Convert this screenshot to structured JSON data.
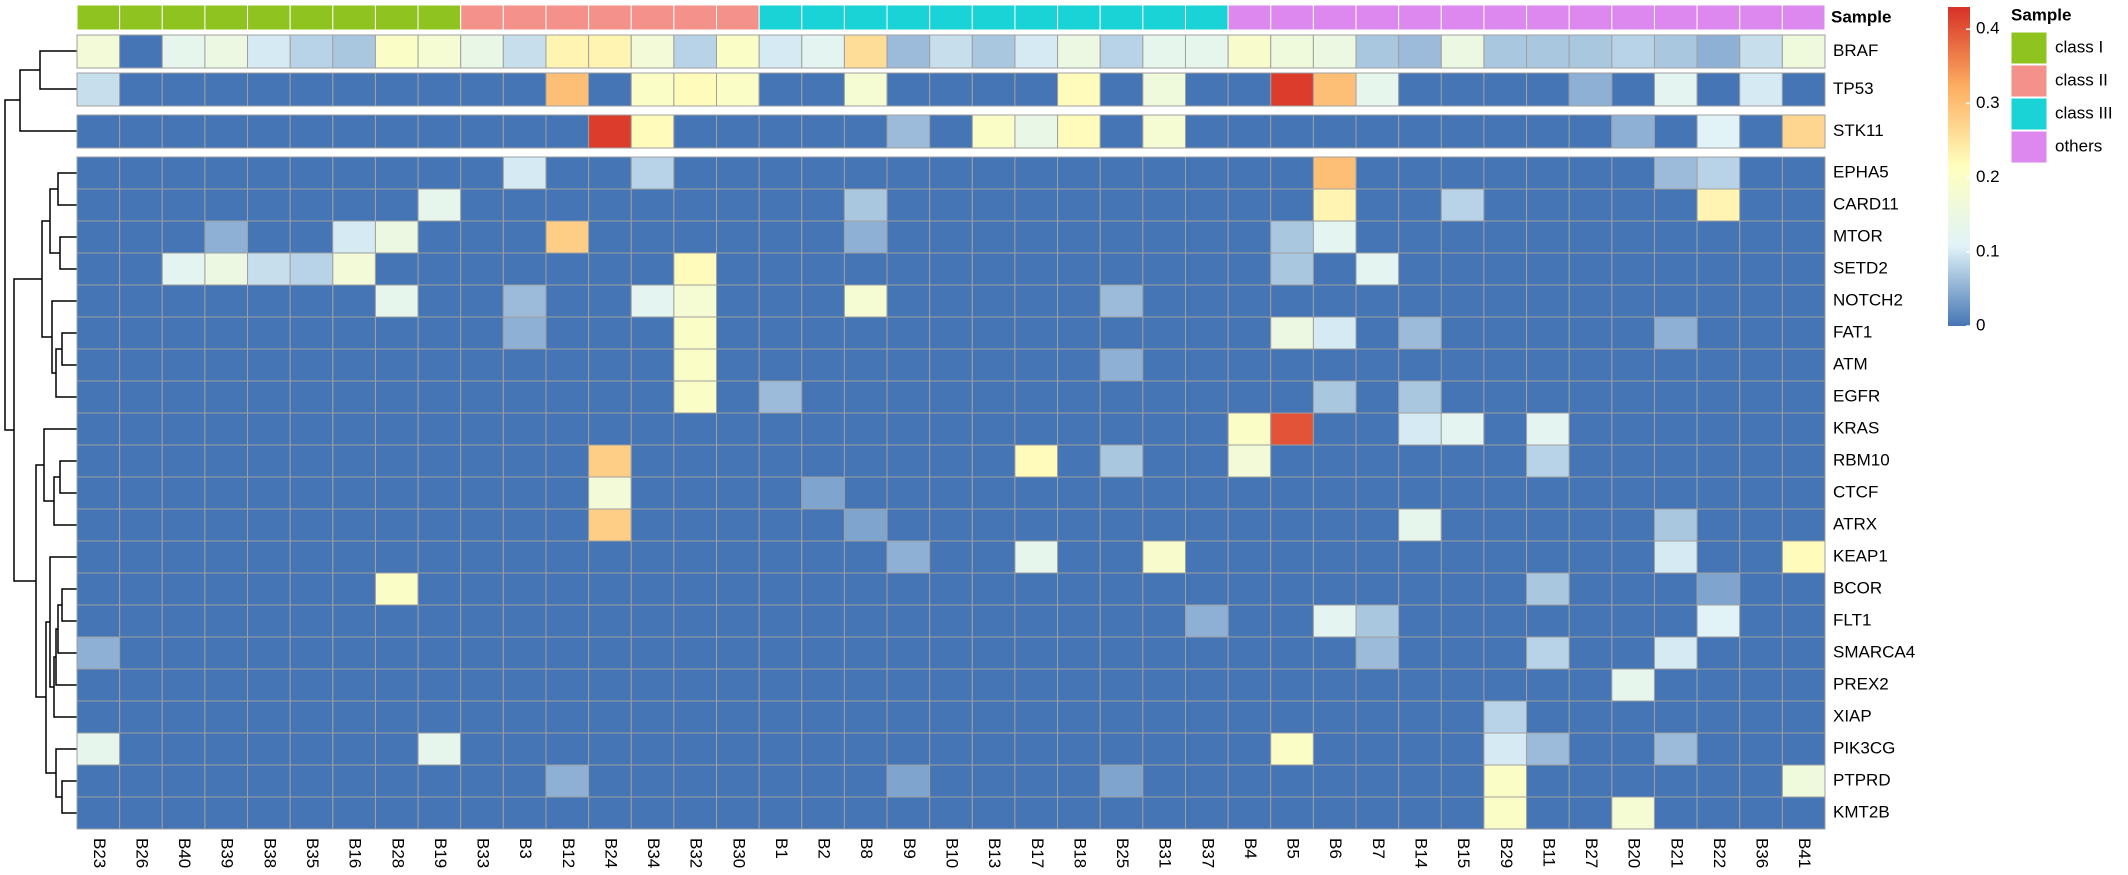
{
  "chart_data": {
    "type": "heatmap",
    "columns": [
      "B23",
      "B26",
      "B40",
      "B39",
      "B38",
      "B35",
      "B16",
      "B28",
      "B19",
      "B33",
      "B3",
      "B12",
      "B24",
      "B34",
      "B32",
      "B30",
      "B1",
      "B2",
      "B8",
      "B9",
      "B10",
      "B13",
      "B17",
      "B18",
      "B25",
      "B31",
      "B37",
      "B4",
      "B5",
      "B6",
      "B7",
      "B14",
      "B15",
      "B29",
      "B11",
      "B27",
      "B20",
      "B21",
      "B22",
      "B36",
      "B41"
    ],
    "rows": [
      "BRAF",
      "TP53",
      "STK11",
      "EPHA5",
      "CARD11",
      "MTOR",
      "SETD2",
      "NOTCH2",
      "FAT1",
      "ATM",
      "EGFR",
      "KRAS",
      "RBM10",
      "CTCF",
      "ATRX",
      "KEAP1",
      "BCOR",
      "FLT1",
      "SMARCA4",
      "PREX2",
      "XIAP",
      "PIK3CG",
      "PTPRD",
      "KMT2B"
    ],
    "values": [
      [
        0.17,
        0,
        0.13,
        0.15,
        0.1,
        0.08,
        0.07,
        0.2,
        0.18,
        0.14,
        0.09,
        0.23,
        0.23,
        0.17,
        0.08,
        0.2,
        0.1,
        0.12,
        0.26,
        0.06,
        0.09,
        0.07,
        0.1,
        0.15,
        0.08,
        0.13,
        0.13,
        0.19,
        0.16,
        0.15,
        0.07,
        0.06,
        0.15,
        0.07,
        0.07,
        0.07,
        0.08,
        0.07,
        0.05,
        0.09,
        0.16
      ],
      [
        0.09,
        0,
        0,
        0,
        0,
        0,
        0,
        0,
        0,
        0,
        0,
        0.3,
        0,
        0.2,
        0.22,
        0.2,
        0,
        0,
        0.18,
        0,
        0,
        0,
        0,
        0.22,
        0,
        0.16,
        0,
        0,
        0.42,
        0.3,
        0.13,
        0,
        0,
        0,
        0,
        0.05,
        0,
        0.12,
        0,
        0.1,
        0
      ],
      [
        0,
        0,
        0,
        0,
        0,
        0,
        0,
        0,
        0,
        0,
        0,
        0,
        0.42,
        0.22,
        0,
        0,
        0,
        0,
        0,
        0.06,
        0,
        0.2,
        0.14,
        0.22,
        0,
        0.18,
        0,
        0,
        0,
        0,
        0,
        0,
        0,
        0,
        0,
        0,
        0.05,
        0,
        0.11,
        0,
        0.27
      ],
      [
        0,
        0,
        0,
        0,
        0,
        0,
        0,
        0,
        0,
        0,
        0.1,
        0,
        0,
        0.08,
        0,
        0,
        0,
        0,
        0,
        0,
        0,
        0,
        0,
        0,
        0,
        0,
        0,
        0,
        0,
        0.3,
        0,
        0,
        0,
        0,
        0,
        0,
        0,
        0.06,
        0.08,
        0,
        0
      ],
      [
        0,
        0,
        0,
        0,
        0,
        0,
        0,
        0,
        0.13,
        0,
        0,
        0,
        0,
        0,
        0,
        0,
        0,
        0,
        0.07,
        0,
        0,
        0,
        0,
        0,
        0,
        0,
        0,
        0,
        0,
        0.23,
        0,
        0,
        0.08,
        0,
        0,
        0,
        0,
        0,
        0.23,
        0,
        0
      ],
      [
        0,
        0,
        0,
        0.05,
        0,
        0,
        0.1,
        0.15,
        0,
        0,
        0,
        0.28,
        0,
        0,
        0,
        0,
        0,
        0,
        0.05,
        0,
        0,
        0,
        0,
        0,
        0,
        0,
        0,
        0,
        0.07,
        0.12,
        0,
        0,
        0,
        0,
        0,
        0,
        0,
        0,
        0,
        0,
        0
      ],
      [
        0,
        0,
        0.12,
        0.15,
        0.09,
        0.08,
        0.17,
        0,
        0,
        0,
        0,
        0,
        0,
        0,
        0.22,
        0,
        0,
        0,
        0,
        0,
        0,
        0,
        0,
        0,
        0,
        0,
        0,
        0,
        0.07,
        0,
        0.12,
        0,
        0,
        0,
        0,
        0,
        0,
        0,
        0,
        0,
        0
      ],
      [
        0,
        0,
        0,
        0,
        0,
        0,
        0,
        0.13,
        0,
        0,
        0.06,
        0,
        0,
        0.12,
        0.18,
        0,
        0,
        0,
        0.18,
        0,
        0,
        0,
        0,
        0,
        0.06,
        0,
        0,
        0,
        0,
        0,
        0,
        0,
        0,
        0,
        0,
        0,
        0,
        0,
        0,
        0,
        0
      ],
      [
        0,
        0,
        0,
        0,
        0,
        0,
        0,
        0,
        0,
        0,
        0.05,
        0,
        0,
        0,
        0.2,
        0,
        0,
        0,
        0,
        0,
        0,
        0,
        0,
        0,
        0,
        0,
        0,
        0,
        0.15,
        0.1,
        0,
        0.06,
        0,
        0,
        0,
        0,
        0,
        0.05,
        0,
        0,
        0
      ],
      [
        0,
        0,
        0,
        0,
        0,
        0,
        0,
        0,
        0,
        0,
        0,
        0,
        0,
        0,
        0.2,
        0,
        0,
        0,
        0,
        0,
        0,
        0,
        0,
        0,
        0.05,
        0,
        0,
        0,
        0,
        0,
        0,
        0,
        0,
        0,
        0,
        0,
        0,
        0,
        0,
        0,
        0
      ],
      [
        0,
        0,
        0,
        0,
        0,
        0,
        0,
        0,
        0,
        0,
        0,
        0,
        0,
        0,
        0.2,
        0,
        0.06,
        0,
        0,
        0,
        0,
        0,
        0,
        0,
        0,
        0,
        0,
        0,
        0,
        0.07,
        0,
        0.07,
        0,
        0,
        0,
        0,
        0,
        0,
        0,
        0,
        0
      ],
      [
        0,
        0,
        0,
        0,
        0,
        0,
        0,
        0,
        0,
        0,
        0,
        0,
        0,
        0,
        0,
        0,
        0,
        0,
        0,
        0,
        0,
        0,
        0,
        0,
        0,
        0,
        0,
        0.2,
        0.4,
        0,
        0,
        0.1,
        0.12,
        0,
        0.12,
        0,
        0,
        0,
        0,
        0,
        0
      ],
      [
        0,
        0,
        0,
        0,
        0,
        0,
        0,
        0,
        0,
        0,
        0,
        0,
        0.28,
        0,
        0,
        0,
        0,
        0,
        0,
        0,
        0,
        0,
        0.22,
        0,
        0.07,
        0,
        0,
        0.17,
        0,
        0,
        0,
        0,
        0,
        0,
        0.08,
        0,
        0,
        0,
        0,
        0,
        0
      ],
      [
        0,
        0,
        0,
        0,
        0,
        0,
        0,
        0,
        0,
        0,
        0,
        0,
        0.17,
        0,
        0,
        0,
        0,
        0.04,
        0,
        0,
        0,
        0,
        0,
        0,
        0,
        0,
        0,
        0,
        0,
        0,
        0,
        0,
        0,
        0,
        0,
        0,
        0,
        0,
        0,
        0,
        0
      ],
      [
        0,
        0,
        0,
        0,
        0,
        0,
        0,
        0,
        0,
        0,
        0,
        0,
        0.28,
        0,
        0,
        0,
        0,
        0,
        0.04,
        0,
        0,
        0,
        0,
        0,
        0,
        0,
        0,
        0,
        0,
        0,
        0,
        0.13,
        0,
        0,
        0,
        0,
        0,
        0.07,
        0,
        0,
        0
      ],
      [
        0,
        0,
        0,
        0,
        0,
        0,
        0,
        0,
        0,
        0,
        0,
        0,
        0,
        0,
        0,
        0,
        0,
        0,
        0,
        0.05,
        0,
        0,
        0.13,
        0,
        0,
        0.19,
        0,
        0,
        0,
        0,
        0,
        0,
        0,
        0,
        0,
        0,
        0,
        0.1,
        0,
        0,
        0.22
      ],
      [
        0,
        0,
        0,
        0,
        0,
        0,
        0,
        0.2,
        0,
        0,
        0,
        0,
        0,
        0,
        0,
        0,
        0,
        0,
        0,
        0,
        0,
        0,
        0,
        0,
        0,
        0,
        0,
        0,
        0,
        0,
        0,
        0,
        0,
        0,
        0.07,
        0,
        0,
        0,
        0.04,
        0,
        0
      ],
      [
        0,
        0,
        0,
        0,
        0,
        0,
        0,
        0,
        0,
        0,
        0,
        0,
        0,
        0,
        0,
        0,
        0,
        0,
        0,
        0,
        0,
        0,
        0,
        0,
        0,
        0,
        0.05,
        0,
        0,
        0.12,
        0.07,
        0,
        0,
        0,
        0,
        0,
        0,
        0,
        0.11,
        0,
        0
      ],
      [
        0.05,
        0,
        0,
        0,
        0,
        0,
        0,
        0,
        0,
        0,
        0,
        0,
        0,
        0,
        0,
        0,
        0,
        0,
        0,
        0,
        0,
        0,
        0,
        0,
        0,
        0,
        0,
        0,
        0,
        0,
        0.06,
        0,
        0,
        0,
        0.08,
        0,
        0,
        0.1,
        0,
        0,
        0
      ],
      [
        0,
        0,
        0,
        0,
        0,
        0,
        0,
        0,
        0,
        0,
        0,
        0,
        0,
        0,
        0,
        0,
        0,
        0,
        0,
        0,
        0,
        0,
        0,
        0,
        0,
        0,
        0,
        0,
        0,
        0,
        0,
        0,
        0,
        0,
        0,
        0,
        0.13,
        0,
        0,
        0,
        0
      ],
      [
        0,
        0,
        0,
        0,
        0,
        0,
        0,
        0,
        0,
        0,
        0,
        0,
        0,
        0,
        0,
        0,
        0,
        0,
        0,
        0,
        0,
        0,
        0,
        0,
        0,
        0,
        0,
        0,
        0,
        0,
        0,
        0,
        0,
        0.08,
        0,
        0,
        0,
        0,
        0,
        0,
        0
      ],
      [
        0.13,
        0,
        0,
        0,
        0,
        0,
        0,
        0,
        0.13,
        0,
        0,
        0,
        0,
        0,
        0,
        0,
        0,
        0,
        0,
        0,
        0,
        0,
        0,
        0,
        0,
        0,
        0,
        0,
        0.2,
        0,
        0,
        0,
        0,
        0.1,
        0.06,
        0,
        0,
        0.06,
        0,
        0,
        0
      ],
      [
        0,
        0,
        0,
        0,
        0,
        0,
        0,
        0,
        0,
        0,
        0,
        0.05,
        0,
        0,
        0,
        0,
        0,
        0,
        0,
        0.04,
        0,
        0,
        0,
        0,
        0.04,
        0,
        0,
        0,
        0,
        0,
        0,
        0,
        0,
        0.2,
        0,
        0,
        0,
        0,
        0,
        0,
        0.16
      ],
      [
        0,
        0,
        0,
        0,
        0,
        0,
        0,
        0,
        0,
        0,
        0,
        0,
        0,
        0,
        0,
        0,
        0,
        0,
        0,
        0,
        0,
        0,
        0,
        0,
        0,
        0,
        0,
        0,
        0,
        0,
        0,
        0,
        0,
        0.2,
        0,
        0,
        0.18,
        0,
        0,
        0,
        0
      ]
    ],
    "colormap": [
      "#4575b4",
      "#e0f3f8",
      "#ffffbf",
      "#fdae61",
      "#d73027"
    ],
    "clim": [
      0,
      0.43
    ],
    "cticks": [
      0,
      0.1,
      0.2,
      0.3,
      0.4
    ],
    "annotation": {
      "title": "Sample",
      "classes": [
        {
          "name": "class I",
          "color": "#8fc31f"
        },
        {
          "name": "class II",
          "color": "#f4918a"
        },
        {
          "name": "class III",
          "color": "#19d3d6"
        },
        {
          "name": "others",
          "color": "#dd88ee"
        }
      ],
      "values": [
        "class I",
        "class I",
        "class I",
        "class I",
        "class I",
        "class I",
        "class I",
        "class I",
        "class I",
        "class II",
        "class II",
        "class II",
        "class II",
        "class II",
        "class II",
        "class II",
        "class III",
        "class III",
        "class III",
        "class III",
        "class III",
        "class III",
        "class III",
        "class III",
        "class III",
        "class III",
        "class III",
        "others",
        "others",
        "others",
        "others",
        "others",
        "others",
        "others",
        "others",
        "others",
        "others",
        "others",
        "others",
        "others",
        "others"
      ]
    }
  }
}
